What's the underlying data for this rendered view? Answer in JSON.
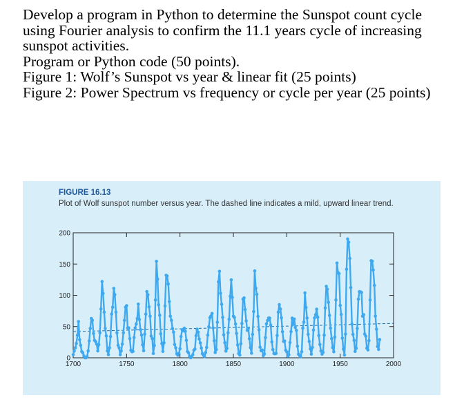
{
  "task": {
    "line1": "Develop a program in Python to determine the Sunspot count cycle",
    "line2": "using Fourier analysis to confirm the 11.1 years cycle of increasing",
    "line3": "sunspot activities.",
    "line4": "Program or Python code (50 points).",
    "line5": "Figure 1: Wolf’s Sunspot vs year & linear fit (25 points)",
    "line6": "Figure 2: Power Spectrum vs frequency or cycle per year (25 points)"
  },
  "figure": {
    "label": "FIGURE 16.13",
    "caption": "Plot of Wolf sunspot number versus year. The dashed line indicates a mild, upward linear trend."
  },
  "colors": {
    "series": "#3fa9f0",
    "panel": "#d8eef9",
    "axis": "#222222"
  },
  "chart_data": {
    "type": "line",
    "xlim": [
      1700,
      2000
    ],
    "ylim": [
      0,
      200
    ],
    "xticks": [
      1700,
      1750,
      1800,
      1850,
      1900,
      1950,
      2000
    ],
    "yticks": [
      0,
      50,
      100,
      150,
      200
    ],
    "grid": false,
    "trend": {
      "style": "dashed",
      "start": [
        1700,
        42
      ],
      "end": [
        2000,
        55
      ]
    },
    "x": [
      1700,
      1701,
      1702,
      1703,
      1704,
      1705,
      1706,
      1707,
      1708,
      1709,
      1710,
      1711,
      1712,
      1713,
      1714,
      1715,
      1716,
      1717,
      1718,
      1719,
      1720,
      1721,
      1722,
      1723,
      1724,
      1725,
      1726,
      1727,
      1728,
      1729,
      1730,
      1731,
      1732,
      1733,
      1734,
      1735,
      1736,
      1737,
      1738,
      1739,
      1740,
      1741,
      1742,
      1743,
      1744,
      1745,
      1746,
      1747,
      1748,
      1749,
      1750,
      1751,
      1752,
      1753,
      1754,
      1755,
      1756,
      1757,
      1758,
      1759,
      1760,
      1761,
      1762,
      1763,
      1764,
      1765,
      1766,
      1767,
      1768,
      1769,
      1770,
      1771,
      1772,
      1773,
      1774,
      1775,
      1776,
      1777,
      1778,
      1779,
      1780,
      1781,
      1782,
      1783,
      1784,
      1785,
      1786,
      1787,
      1788,
      1789,
      1790,
      1791,
      1792,
      1793,
      1794,
      1795,
      1796,
      1797,
      1798,
      1799,
      1800,
      1801,
      1802,
      1803,
      1804,
      1805,
      1806,
      1807,
      1808,
      1809,
      1810,
      1811,
      1812,
      1813,
      1814,
      1815,
      1816,
      1817,
      1818,
      1819,
      1820,
      1821,
      1822,
      1823,
      1824,
      1825,
      1826,
      1827,
      1828,
      1829,
      1830,
      1831,
      1832,
      1833,
      1834,
      1835,
      1836,
      1837,
      1838,
      1839,
      1840,
      1841,
      1842,
      1843,
      1844,
      1845,
      1846,
      1847,
      1848,
      1849,
      1850,
      1851,
      1852,
      1853,
      1854,
      1855,
      1856,
      1857,
      1858,
      1859,
      1860,
      1861,
      1862,
      1863,
      1864,
      1865,
      1866,
      1867,
      1868,
      1869,
      1870,
      1871,
      1872,
      1873,
      1874,
      1875,
      1876,
      1877,
      1878,
      1879,
      1880,
      1881,
      1882,
      1883,
      1884,
      1885,
      1886,
      1887,
      1888,
      1889,
      1890,
      1891,
      1892,
      1893,
      1894,
      1895,
      1896,
      1897,
      1898,
      1899,
      1900,
      1901,
      1902,
      1903,
      1904,
      1905,
      1906,
      1907,
      1908,
      1909,
      1910,
      1911,
      1912,
      1913,
      1914,
      1915,
      1916,
      1917,
      1918,
      1919,
      1920,
      1921,
      1922,
      1923,
      1924,
      1925,
      1926,
      1927,
      1928,
      1929,
      1930,
      1931,
      1932,
      1933,
      1934,
      1935,
      1936,
      1937,
      1938,
      1939,
      1940,
      1941,
      1942,
      1943,
      1944,
      1945,
      1946,
      1947,
      1948,
      1949,
      1950,
      1951,
      1952,
      1953,
      1954,
      1955,
      1956,
      1957,
      1958,
      1959,
      1960,
      1961,
      1962,
      1963,
      1964,
      1965,
      1966,
      1967,
      1968,
      1969,
      1970,
      1971,
      1972,
      1973,
      1974,
      1975,
      1976,
      1977,
      1978,
      1979,
      1980,
      1981,
      1982,
      1983,
      1984,
      1985,
      1986,
      1987
    ],
    "y": [
      5,
      11,
      16,
      23,
      36,
      58,
      29,
      20,
      10,
      8,
      3,
      0,
      0,
      2,
      11,
      27,
      47,
      63,
      60,
      39,
      28,
      26,
      22,
      11,
      21,
      40,
      78,
      122,
      103,
      73,
      47,
      35,
      11,
      5,
      16,
      34,
      70,
      81,
      111,
      101,
      73,
      40,
      20,
      16,
      5,
      11,
      22,
      40,
      60,
      80.9,
      83.4,
      47.7,
      47.8,
      30.7,
      12.2,
      9.6,
      10.2,
      32.4,
      47.6,
      54,
      62.9,
      85.9,
      61.2,
      45.1,
      36.4,
      20.9,
      11.4,
      37.8,
      69.8,
      106.1,
      100.8,
      81.6,
      66.5,
      34.8,
      30.6,
      7,
      19.8,
      92.5,
      154.4,
      125.9,
      84.8,
      68.1,
      38.5,
      22.8,
      10.2,
      24.1,
      82.9,
      132,
      130.9,
      118.1,
      89.9,
      66.6,
      60,
      46.9,
      41,
      21.3,
      16,
      6.4,
      4.1,
      6.8,
      14.5,
      34,
      45,
      43.1,
      47.5,
      42.2,
      28.1,
      10.1,
      8.1,
      2.5,
      0,
      1.4,
      5,
      12.2,
      13.9,
      35.4,
      45.8,
      41,
      30.1,
      23.9,
      15.6,
      6.6,
      4,
      1.8,
      8.5,
      16.6,
      36.3,
      49.6,
      64.2,
      67,
      70.9,
      47.8,
      27.5,
      8.5,
      13.2,
      56.9,
      121.5,
      138.3,
      103.2,
      85.7,
      64.6,
      36.7,
      24.2,
      10.7,
      15,
      40.1,
      61.5,
      98.5,
      124.7,
      96.3,
      66.6,
      64.5,
      54.1,
      39,
      20.6,
      6.7,
      4.3,
      22.7,
      54.8,
      93.8,
      95.8,
      77.2,
      59.1,
      44,
      47,
      30.5,
      16.3,
      7.3,
      37.6,
      74,
      139,
      111.2,
      101.6,
      66.2,
      44.7,
      17,
      11.3,
      12.4,
      3.4,
      6,
      32.3,
      54.3,
      59.7,
      63.7,
      63.5,
      52.2,
      25.4,
      13.1,
      6.8,
      6.3,
      7.1,
      35.6,
      73,
      85.1,
      78,
      64,
      41.8,
      26.2,
      26.7,
      12.1,
      9.5,
      2.7,
      5,
      24.4,
      42,
      63.5,
      53.8,
      62,
      48.5,
      43.9,
      18.6,
      5.7,
      3.6,
      1.4,
      9.6,
      47.4,
      57.1,
      103.9,
      80.6,
      63.6,
      37.6,
      26.1,
      14.2,
      5.8,
      16.7,
      44.3,
      63.9,
      69,
      77.8,
      64.9,
      35.7,
      21.2,
      11.1,
      5.7,
      8.7,
      36.1,
      79.7,
      114.4,
      109.6,
      88.8,
      67.8,
      47.5,
      30.6,
      16.3,
      9.6,
      33.2,
      92.6,
      151.6,
      136.3,
      134.7,
      83.9,
      69.4,
      31.5,
      13.9,
      4.4,
      38,
      141.7,
      190.2,
      184.8,
      159,
      112.3,
      53.9,
      37.5,
      27.9,
      10.2,
      15.1,
      47,
      93.8,
      105.9,
      105.5,
      104.5,
      66.6,
      68.9,
      38,
      34.5,
      15.5,
      12.6,
      27.5,
      92.5,
      155.4,
      154.6,
      140.4,
      115.9,
      66.6,
      45.9,
      17.9,
      13.4,
      29.2
    ]
  }
}
